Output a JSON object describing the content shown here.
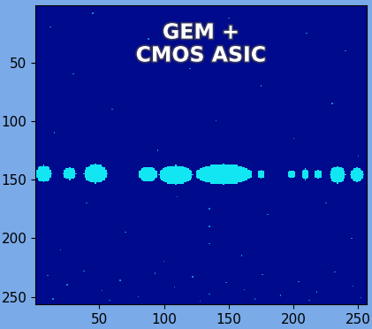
{
  "chart_data": {
    "type": "heatmap",
    "annotation": "GEM +\nCMOS ASIC",
    "size": [
      256,
      256
    ],
    "xlim": [
      0.5,
      256.5
    ],
    "ylim": [
      256.5,
      0.5
    ],
    "xticks": [
      50,
      100,
      150,
      200,
      250
    ],
    "yticks": [
      50,
      100,
      150,
      200,
      250
    ],
    "clusters": [
      {
        "x": [
          1,
          13
        ],
        "y": [
          138,
          152
        ]
      },
      {
        "x": [
          22,
          32
        ],
        "y": [
          140,
          150
        ]
      },
      {
        "x": [
          38,
          56
        ],
        "y": [
          137,
          153
        ]
      },
      {
        "x": [
          80,
          95
        ],
        "y": [
          139,
          152
        ]
      },
      {
        "x": [
          96,
          122
        ],
        "y": [
          138,
          154
        ]
      },
      {
        "x": [
          124,
          168
        ],
        "y": [
          137,
          154
        ]
      },
      {
        "x": [
          172,
          178
        ],
        "y": [
          142,
          149
        ]
      },
      {
        "x": [
          195,
          202
        ],
        "y": [
          142,
          149
        ]
      },
      {
        "x": [
          206,
          212
        ],
        "y": [
          141,
          150
        ]
      },
      {
        "x": [
          216,
          222
        ],
        "y": [
          142,
          149
        ]
      },
      {
        "x": [
          228,
          240
        ],
        "y": [
          139,
          153
        ]
      },
      {
        "x": [
          244,
          254
        ],
        "y": [
          140,
          152
        ]
      }
    ],
    "hits": [
      [
        12,
        20
      ],
      [
        45,
        8
      ],
      [
        88,
        30
      ],
      [
        150,
        12
      ],
      [
        210,
        25
      ],
      [
        240,
        40
      ],
      [
        30,
        60
      ],
      [
        120,
        55
      ],
      [
        175,
        70
      ],
      [
        60,
        90
      ],
      [
        230,
        85
      ],
      [
        15,
        110
      ],
      [
        140,
        100
      ],
      [
        200,
        115
      ],
      [
        95,
        125
      ],
      [
        250,
        130
      ],
      [
        40,
        170
      ],
      [
        110,
        165
      ],
      [
        135,
        175
      ],
      [
        135,
        190
      ],
      [
        135,
        205
      ],
      [
        180,
        180
      ],
      [
        225,
        170
      ],
      [
        70,
        195
      ],
      [
        20,
        210
      ],
      [
        160,
        215
      ],
      [
        245,
        200
      ],
      [
        100,
        220
      ],
      [
        10,
        232
      ],
      [
        25,
        240
      ],
      [
        38,
        228
      ],
      [
        52,
        245
      ],
      [
        66,
        236
      ],
      [
        80,
        250
      ],
      [
        93,
        230
      ],
      [
        108,
        242
      ],
      [
        122,
        233
      ],
      [
        135,
        248
      ],
      [
        148,
        238
      ],
      [
        162,
        244
      ],
      [
        176,
        231
      ],
      [
        190,
        249
      ],
      [
        204,
        237
      ],
      [
        218,
        246
      ],
      [
        232,
        229
      ],
      [
        246,
        241
      ],
      [
        14,
        252
      ],
      [
        58,
        253
      ],
      [
        128,
        254
      ],
      [
        170,
        252
      ],
      [
        212,
        253
      ],
      [
        252,
        251
      ]
    ]
  }
}
